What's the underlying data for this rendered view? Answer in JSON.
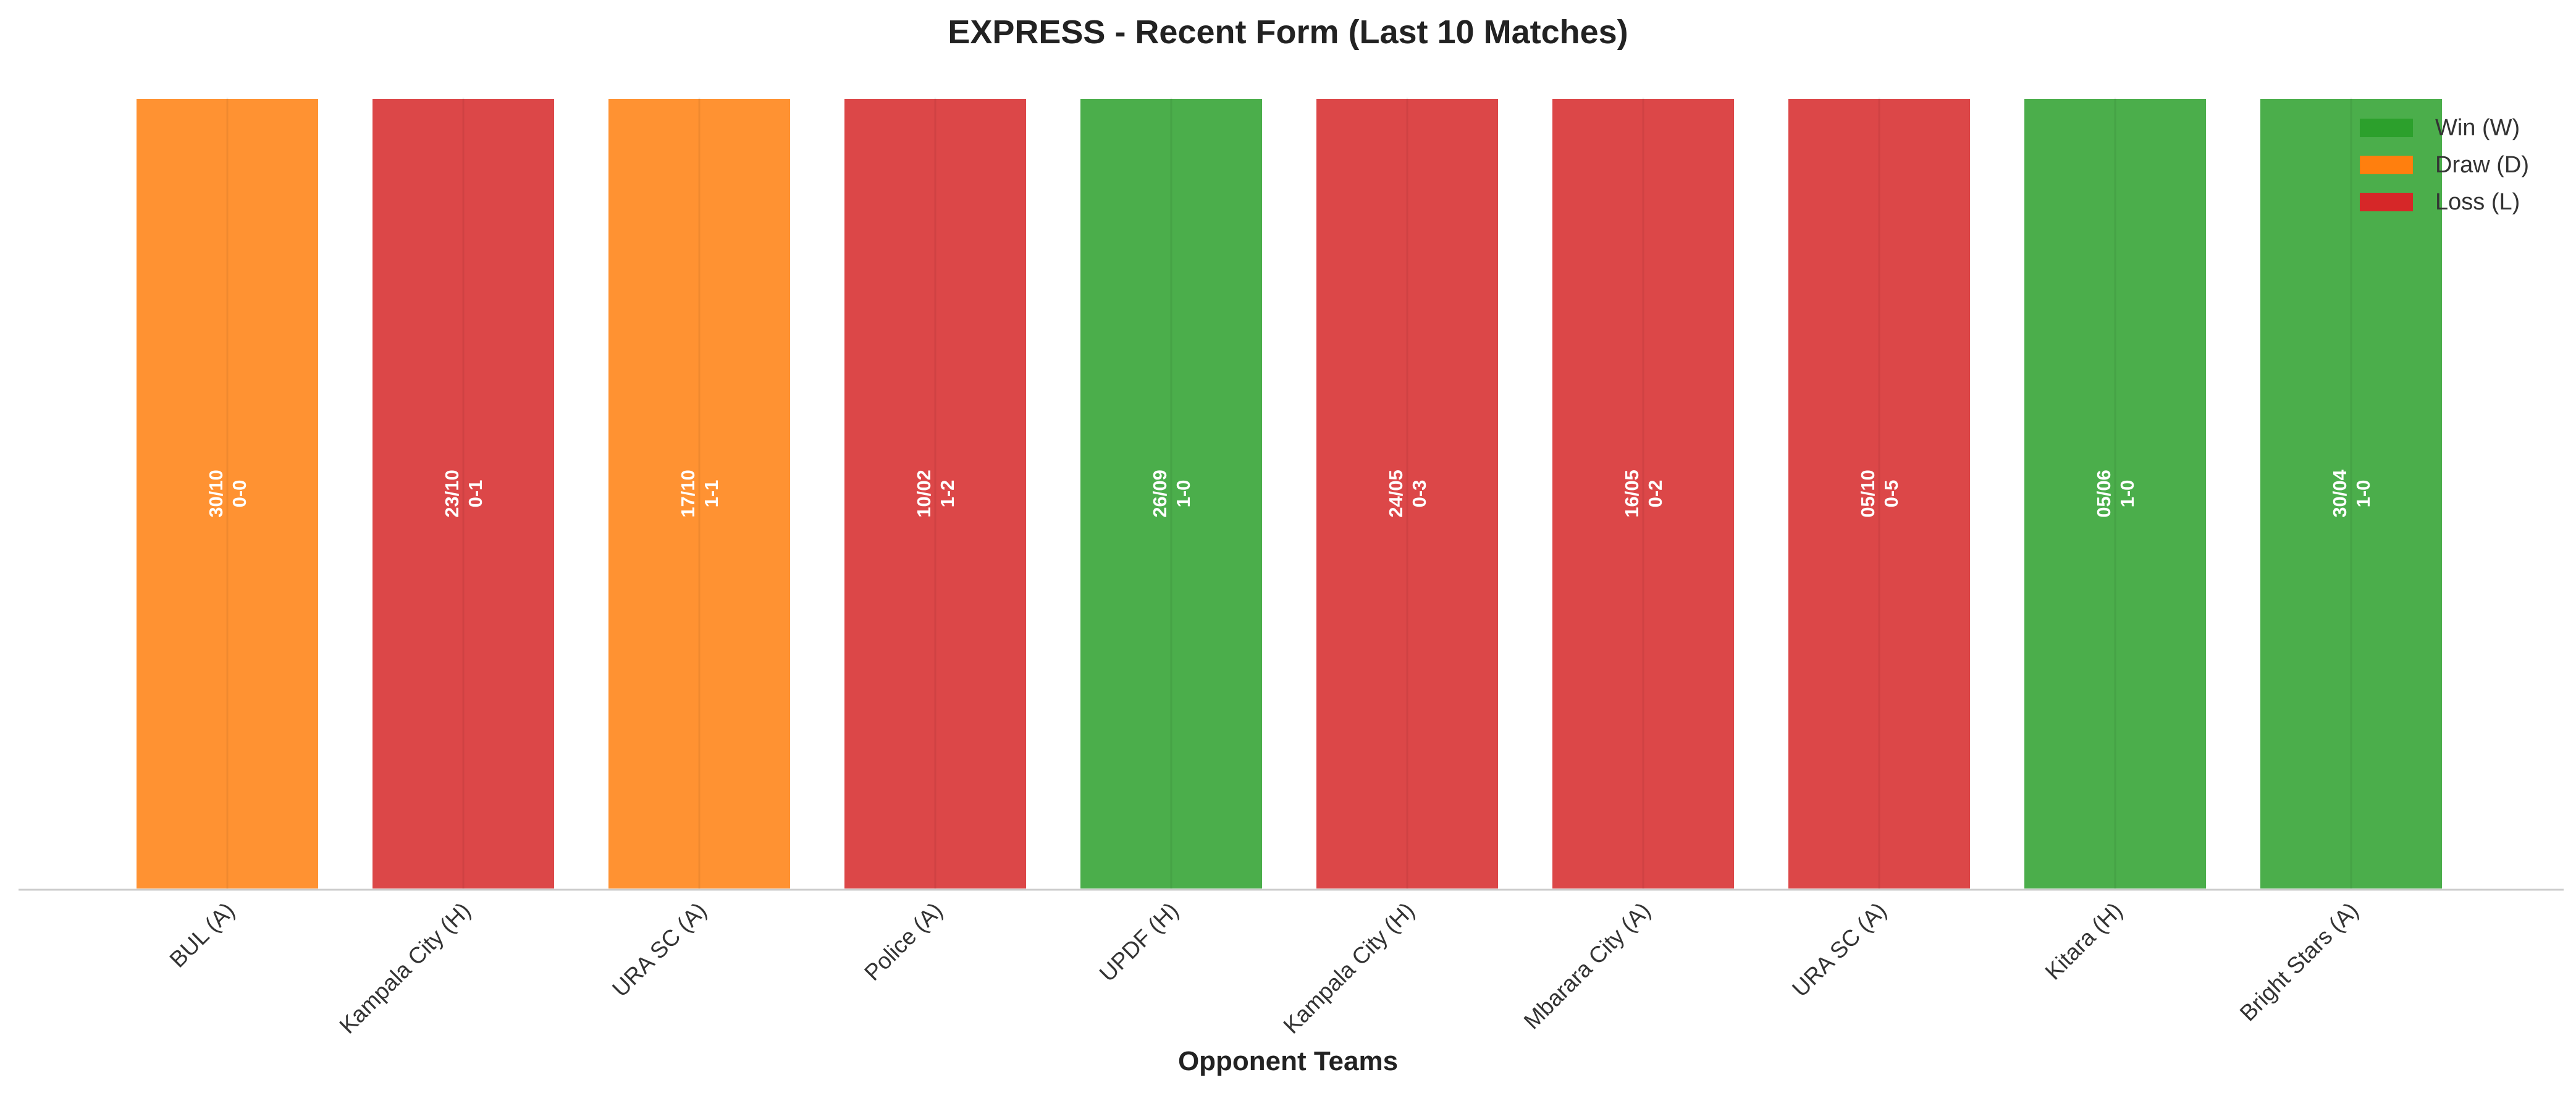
{
  "chart_data": {
    "type": "bar",
    "title": "EXPRESS - Recent Form (Last 10 Matches)",
    "xlabel": "Opponent Teams",
    "ylabel": "",
    "ylim": [
      0,
      1
    ],
    "grid": false,
    "legend_position": "top-right",
    "categories": [
      "BUL (A)",
      "Kampala City (H)",
      "URA SC (A)",
      "Police (A)",
      "UPDF (H)",
      "Kampala City (H)",
      "Mbarara City (A)",
      "URA SC (A)",
      "Kitara (H)",
      "Bright Stars (A)"
    ],
    "values": [
      1,
      1,
      1,
      1,
      1,
      1,
      1,
      1,
      1,
      1
    ],
    "results": [
      "D",
      "L",
      "D",
      "L",
      "W",
      "L",
      "L",
      "L",
      "W",
      "W"
    ],
    "dates": [
      "30/10",
      "23/10",
      "17/10",
      "10/02",
      "26/09",
      "24/05",
      "16/05",
      "05/10",
      "05/06",
      "30/04"
    ],
    "scores": [
      "0-0",
      "0-1",
      "1-1",
      "1-2",
      "1-0",
      "0-3",
      "0-2",
      "0-5",
      "1-0",
      "1-0"
    ],
    "legend": [
      {
        "key": "W",
        "label": "Win (W)",
        "color": "#2ca02c"
      },
      {
        "key": "D",
        "label": "Draw (D)",
        "color": "#ff7f0e"
      },
      {
        "key": "L",
        "label": "Loss (L)",
        "color": "#d62728"
      }
    ]
  }
}
